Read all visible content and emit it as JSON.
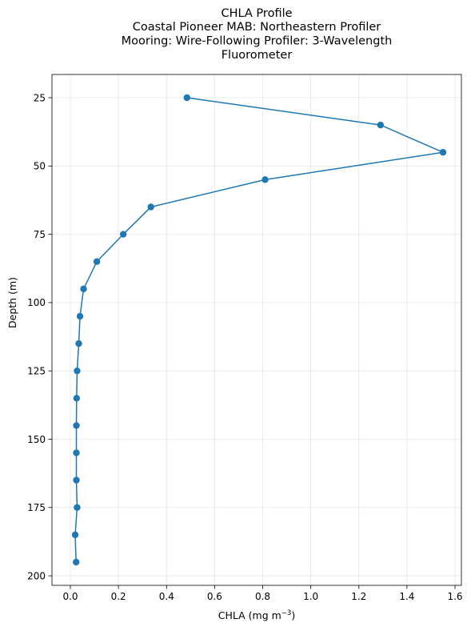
{
  "chart_data": {
    "type": "line",
    "title": "CHLA Profile\nCoastal Pioneer MAB: Northeastern Profiler\nMooring: Wire-Following Profiler: 3-Wavelength\nFluorometer",
    "title_lines": [
      "CHLA Profile",
      "Coastal Pioneer MAB: Northeastern Profiler",
      "Mooring: Wire-Following Profiler: 3-Wavelength",
      "Fluorometer"
    ],
    "xlabel": "CHLA (mg m",
    "xlabel_sup": "−3",
    "xlabel_suffix": ")",
    "ylabel": "Depth (m)",
    "xlim": [
      -0.0765,
      1.6265
    ],
    "ylim": [
      203.5,
      16.5
    ],
    "y_inverted": true,
    "grid": true,
    "x_ticks": [
      0.0,
      0.2,
      0.4,
      0.6,
      0.8,
      1.0,
      1.2,
      1.4,
      1.6
    ],
    "x_tick_labels": [
      "0.0",
      "0.2",
      "0.4",
      "0.6",
      "0.8",
      "1.0",
      "1.2",
      "1.4",
      "1.6"
    ],
    "y_ticks": [
      25,
      50,
      75,
      100,
      125,
      150,
      175,
      200
    ],
    "y_tick_labels": [
      "25",
      "50",
      "75",
      "100",
      "125",
      "150",
      "175",
      "200"
    ],
    "series_color": "#1f77b4",
    "series": [
      {
        "x": [
          0.485,
          1.29,
          1.55,
          0.81,
          0.335,
          0.22,
          0.11,
          0.055,
          0.04,
          0.035,
          0.028,
          0.026,
          0.025,
          0.025,
          0.025,
          0.028,
          0.02,
          0.024
        ],
        "y": [
          25,
          35,
          45,
          55,
          65,
          75,
          85,
          95,
          105,
          115,
          125,
          135,
          145,
          155,
          165,
          175,
          185,
          195
        ]
      }
    ]
  }
}
